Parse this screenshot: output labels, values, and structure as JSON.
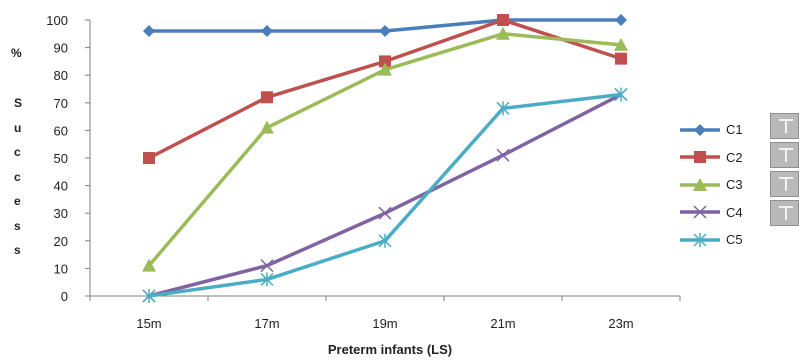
{
  "chart_data": {
    "type": "line",
    "title": "",
    "xlabel": "Preterm infants (LS)",
    "ylabel_prefix": "%",
    "ylabel": "Success",
    "categories": [
      "15m",
      "17m",
      "19m",
      "21m",
      "23m"
    ],
    "ylim": [
      0,
      100
    ],
    "yticks": [
      0,
      10,
      20,
      30,
      40,
      50,
      60,
      70,
      80,
      90,
      100
    ],
    "grid": false,
    "legend_position": "right",
    "series": [
      {
        "name": "C1",
        "color": "#4a7ebb",
        "marker": "diamond",
        "values": [
          96,
          96,
          96,
          100,
          100
        ]
      },
      {
        "name": "C2",
        "color": "#c0504d",
        "marker": "square",
        "values": [
          50,
          72,
          85,
          100,
          86
        ]
      },
      {
        "name": "C3",
        "color": "#9bbb59",
        "marker": "triangle",
        "values": [
          11,
          61,
          82,
          95,
          91
        ]
      },
      {
        "name": "C4",
        "color": "#8064a2",
        "marker": "x",
        "values": [
          0,
          11,
          30,
          51,
          73
        ]
      },
      {
        "name": "C5",
        "color": "#4bacc6",
        "marker": "asterisk",
        "values": [
          0,
          6,
          20,
          68,
          73
        ]
      }
    ]
  }
}
